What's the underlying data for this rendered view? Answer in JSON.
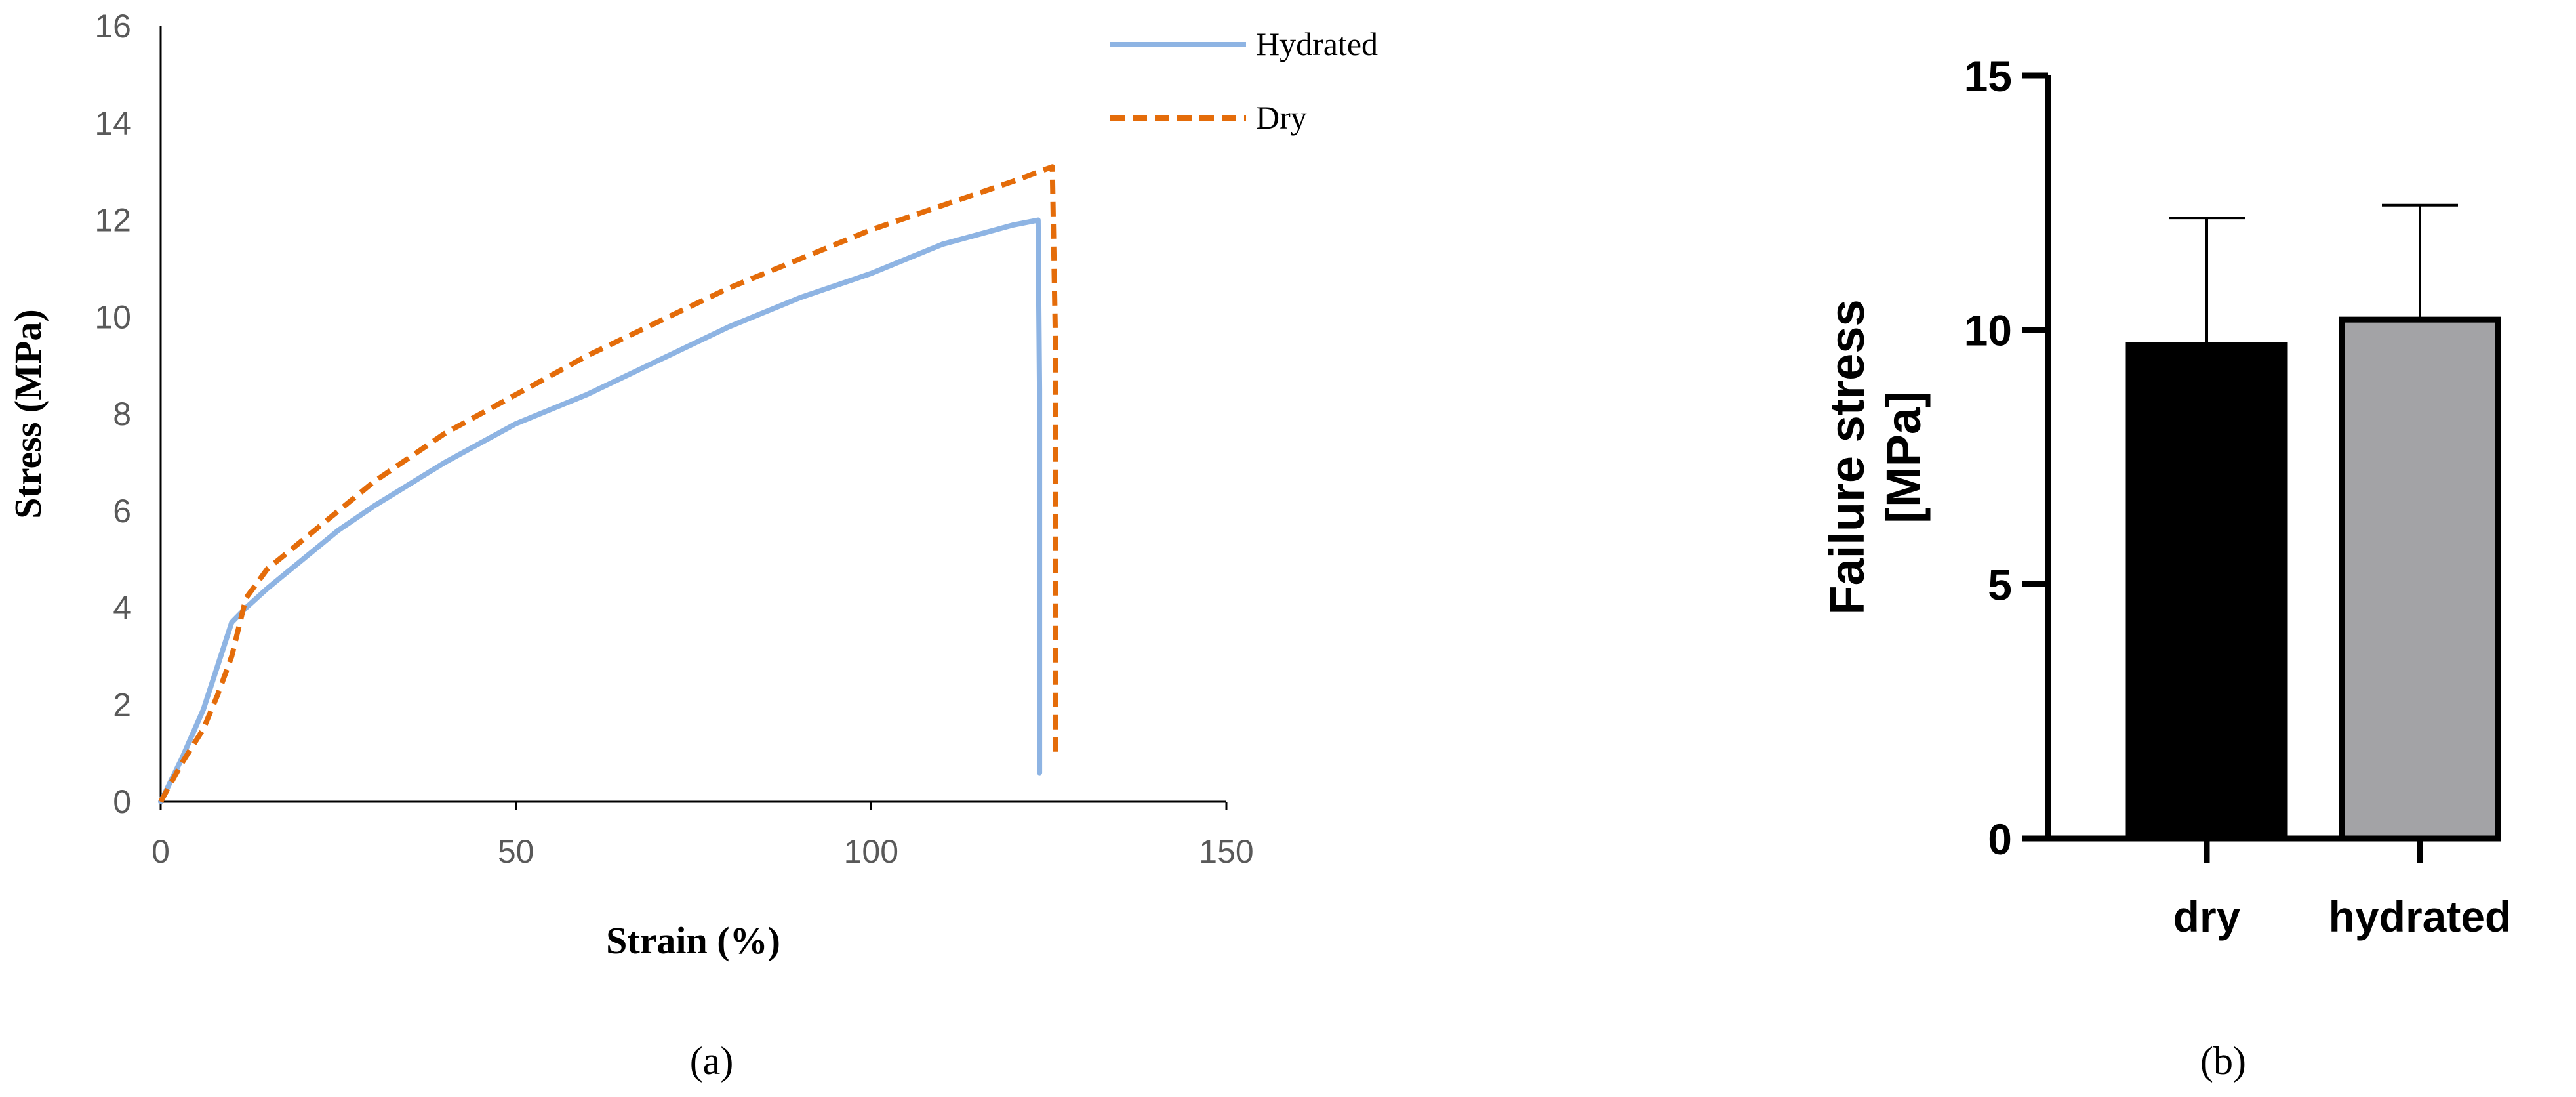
{
  "chart_data": [
    {
      "type": "line",
      "panel_label": "(a)",
      "xlabel": "Strain (%)",
      "ylabel": "Stress (MPa)",
      "xlim": [
        0,
        150
      ],
      "ylim": [
        0,
        16
      ],
      "xticks": [
        "0",
        "50",
        "100",
        "150"
      ],
      "yticks": [
        "0",
        "2",
        "4",
        "6",
        "8",
        "10",
        "12",
        "14",
        "16"
      ],
      "grid": false,
      "legend_position": "top-right",
      "series": [
        {
          "name": "Hydrated",
          "color": "#8eb4e3",
          "style": "solid",
          "x": [
            0,
            3,
            6,
            8,
            10,
            12,
            15,
            20,
            25,
            30,
            40,
            50,
            60,
            70,
            80,
            90,
            100,
            110,
            120,
            123.5,
            123.7,
            123.7
          ],
          "y": [
            0,
            0.9,
            1.9,
            2.8,
            3.7,
            4.0,
            4.4,
            5.0,
            5.6,
            6.1,
            7.0,
            7.8,
            8.4,
            9.1,
            9.8,
            10.4,
            10.9,
            11.5,
            11.9,
            12.0,
            8.5,
            0.6
          ]
        },
        {
          "name": "Dry",
          "color": "#e46c0a",
          "style": "dashed",
          "x": [
            0,
            3,
            6,
            8,
            10,
            12,
            15,
            20,
            25,
            30,
            40,
            50,
            60,
            70,
            80,
            90,
            100,
            110,
            120,
            125.5,
            126,
            126
          ],
          "y": [
            0,
            0.8,
            1.5,
            2.2,
            3.0,
            4.2,
            4.8,
            5.4,
            6.0,
            6.6,
            7.6,
            8.4,
            9.2,
            9.9,
            10.6,
            11.2,
            11.8,
            12.3,
            12.8,
            13.1,
            9.0,
            1.0
          ]
        }
      ]
    },
    {
      "type": "bar",
      "panel_label": "(b)",
      "xlabel": "",
      "ylabel_lines": [
        "Failure stress",
        "[MPa]"
      ],
      "ylim": [
        0,
        15
      ],
      "yticks": [
        "0",
        "5",
        "10",
        "15"
      ],
      "categories": [
        "dry",
        "hydrated"
      ],
      "values": [
        9.7,
        10.2
      ],
      "error_plus": [
        2.5,
        2.25
      ],
      "bar_colors": [
        "#000000",
        "#a3a3a6"
      ],
      "grid": false
    }
  ]
}
